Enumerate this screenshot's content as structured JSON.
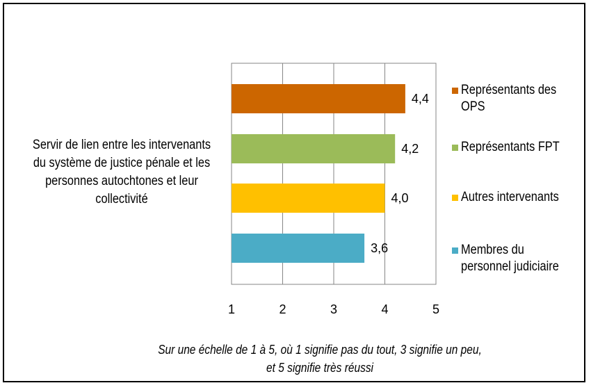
{
  "chart_data": {
    "type": "bar",
    "orientation": "horizontal",
    "categories": [
      "Servir de lien entre les intervenants du système de justice pénale et les personnes autochtones et leur collectivité"
    ],
    "category_lines": [
      "Servir de lien entre les intervenants",
      "du système de justice pénale et les",
      "personnes autochtones et leur",
      "collectivité"
    ],
    "series": [
      {
        "name": "Représentants des OPS",
        "legend_lines": [
          "Représentants des",
          "OPS"
        ],
        "color": "#CC6600",
        "values": [
          4.4
        ],
        "label": "4,4"
      },
      {
        "name": "Représentants FPT",
        "legend_lines": [
          "Représentants FPT"
        ],
        "color": "#9BBB59",
        "values": [
          4.2
        ],
        "label": "4,2"
      },
      {
        "name": "Autres intervenants",
        "legend_lines": [
          "Autres intervenants"
        ],
        "color": "#FFC000",
        "values": [
          4.0
        ],
        "label": "4,0"
      },
      {
        "name": "Membres du personnel judiciaire",
        "legend_lines": [
          "Membres du",
          "personnel judiciaire"
        ],
        "color": "#4BACC6",
        "values": [
          3.6
        ],
        "label": "3,6"
      }
    ],
    "xlim": [
      1,
      5
    ],
    "xticks": [
      1,
      2,
      3,
      4,
      5
    ],
    "xtick_labels": [
      "1",
      "2",
      "3",
      "4",
      "5"
    ],
    "grid": true,
    "legend_position": "right",
    "note_lines": [
      "Sur une échelle de 1 à 5, où 1 signifie pas du tout, 3 signifie un peu,",
      "et 5 signifie très réussi"
    ]
  }
}
